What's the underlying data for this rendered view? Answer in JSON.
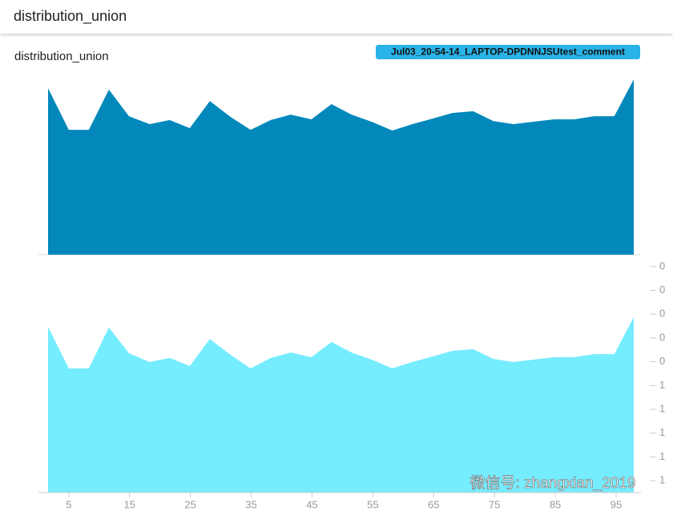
{
  "header": {
    "title": "distribution_union"
  },
  "watermark": "微信号: zhangxian_2019",
  "chart_data": {
    "type": "area",
    "title": "distribution_union",
    "x": [
      1.6,
      5,
      8.3,
      11.6,
      14.9,
      18.3,
      21.6,
      24.9,
      28.2,
      31.6,
      34.9,
      38.2,
      41.5,
      44.9,
      48.2,
      51.5,
      54.8,
      58.2,
      61.5,
      64.8,
      68.1,
      71.5,
      74.8,
      78.1,
      81.4,
      84.8,
      88.1,
      91.4,
      94.7,
      97.9
    ],
    "xlim": [
      1.6,
      97.9
    ],
    "xticks": [
      5,
      15,
      25,
      35,
      45,
      55,
      65,
      75,
      85,
      95
    ],
    "ylim": [
      0,
      10
    ],
    "yticks": [
      {
        "value": 9.5,
        "label": "0"
      },
      {
        "value": 8.5,
        "label": "0"
      },
      {
        "value": 7.5,
        "label": "0"
      },
      {
        "value": 6.5,
        "label": "0"
      },
      {
        "value": 5.5,
        "label": "0"
      },
      {
        "value": 4.5,
        "label": "1"
      },
      {
        "value": 3.5,
        "label": "1"
      },
      {
        "value": 2.5,
        "label": "1"
      },
      {
        "value": 1.5,
        "label": "1"
      },
      {
        "value": 0.5,
        "label": "1"
      }
    ],
    "series": [
      {
        "name": "Jul03_20-54-14_LAPTOP-DPDNNJSUtest_comment",
        "color": "#0288bb",
        "values": [
          7.0,
          5.25,
          5.25,
          6.94,
          5.82,
          5.49,
          5.66,
          5.32,
          6.46,
          5.79,
          5.25,
          5.66,
          5.89,
          5.69,
          6.33,
          5.89,
          5.59,
          5.22,
          5.49,
          5.72,
          5.96,
          6.03,
          5.62,
          5.49,
          5.59,
          5.69,
          5.69,
          5.82,
          5.82,
          7.37
        ]
      },
      {
        "color": "#76ecff",
        "values": [
          6.97,
          5.22,
          5.22,
          6.94,
          5.86,
          5.49,
          5.66,
          5.32,
          6.46,
          5.79,
          5.22,
          5.66,
          5.89,
          5.69,
          6.33,
          5.89,
          5.59,
          5.22,
          5.49,
          5.72,
          5.96,
          6.03,
          5.62,
          5.49,
          5.59,
          5.69,
          5.69,
          5.82,
          5.82,
          7.37
        ]
      }
    ]
  }
}
